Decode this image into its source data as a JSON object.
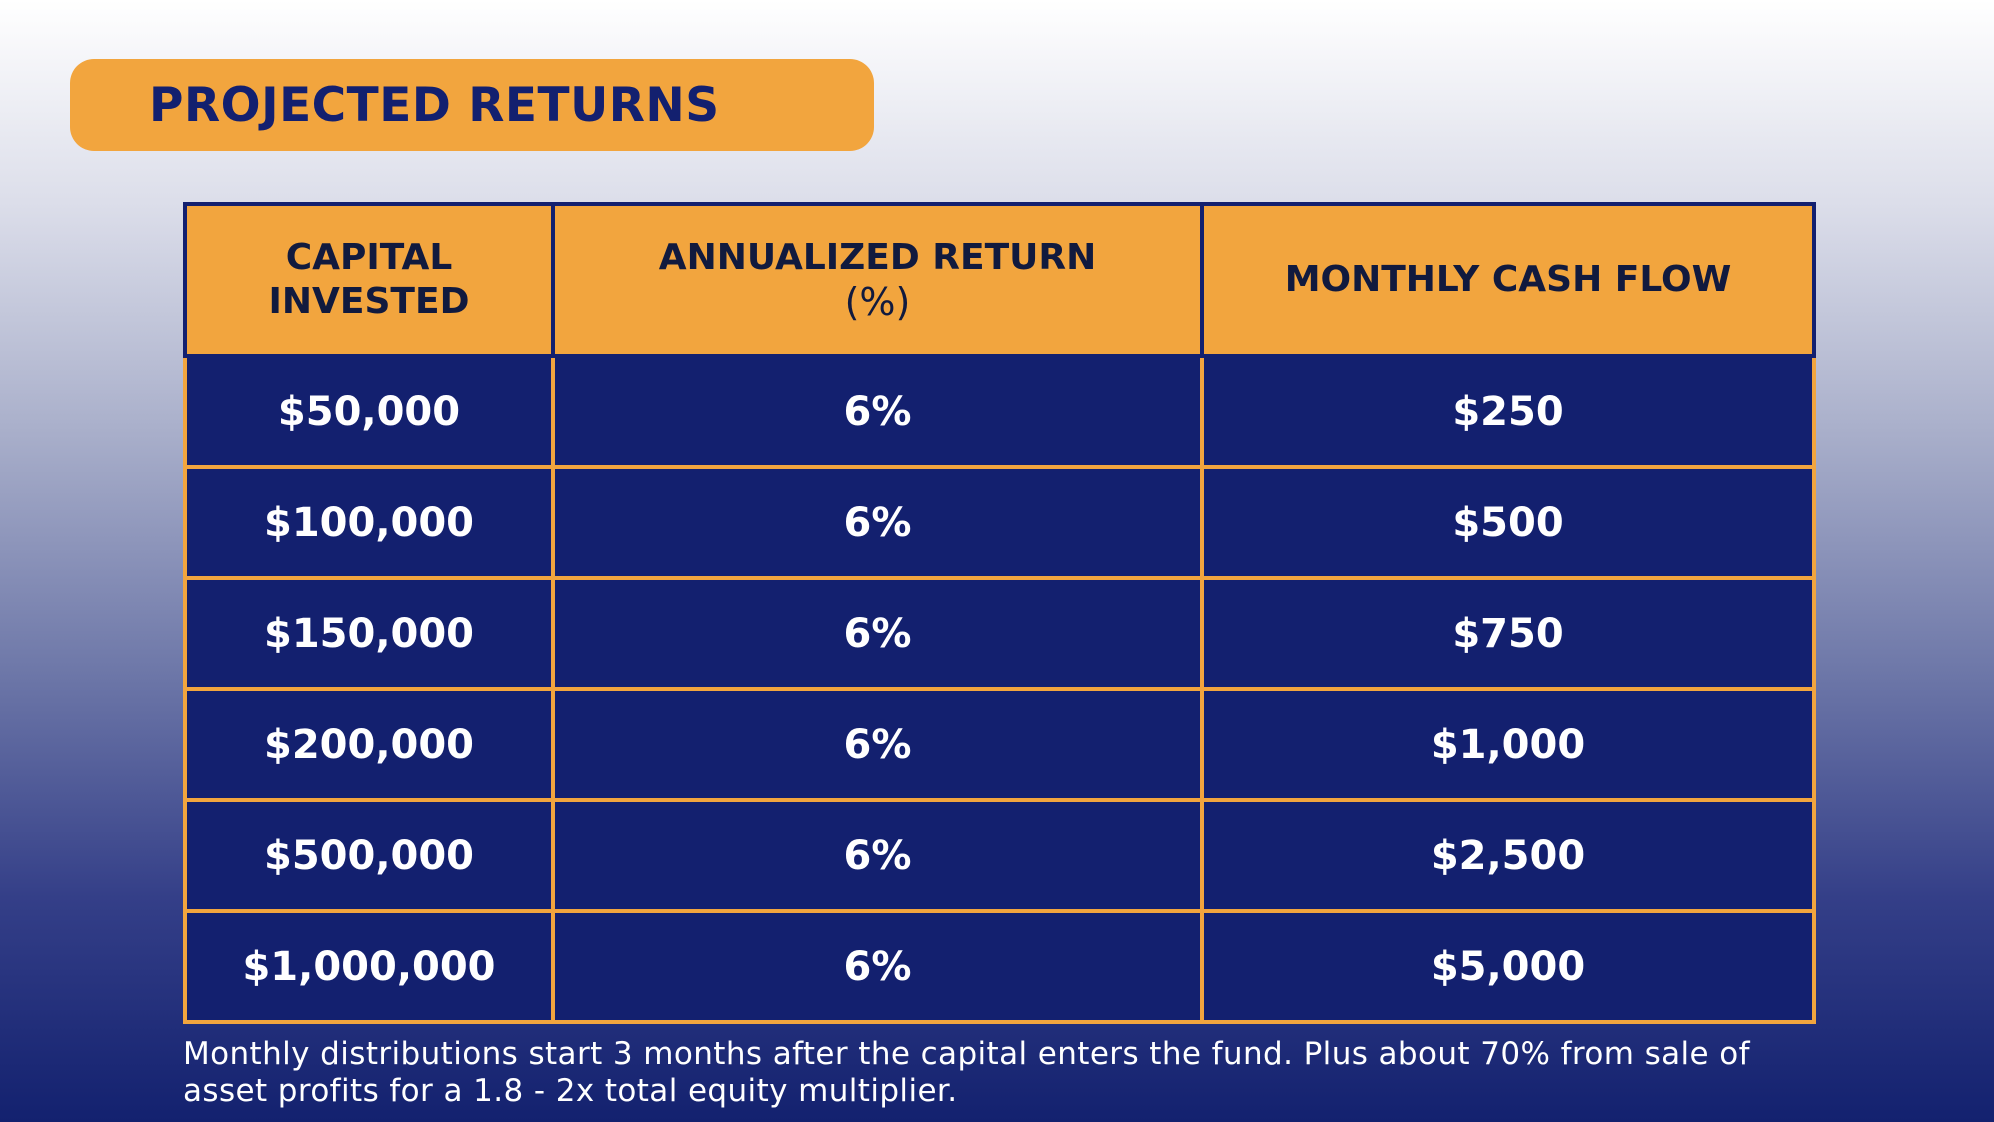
{
  "title": "PROJECTED RETURNS",
  "table": {
    "headers": {
      "capital": "CAPITAL INVESTED",
      "annualized_main": "ANNUALIZED RETURN",
      "annualized_sub": "(%)",
      "monthly": "MONTHLY CASH FLOW"
    },
    "rows": [
      {
        "capital": "$50,000",
        "annualized": "6%",
        "monthly": "$250"
      },
      {
        "capital": "$100,000",
        "annualized": "6%",
        "monthly": "$500"
      },
      {
        "capital": "$150,000",
        "annualized": "6%",
        "monthly": "$750"
      },
      {
        "capital": "$200,000",
        "annualized": "6%",
        "monthly": "$1,000"
      },
      {
        "capital": "$500,000",
        "annualized": "6%",
        "monthly": "$2,500"
      },
      {
        "capital": "$1,000,000",
        "annualized": "6%",
        "monthly": "$5,000"
      }
    ]
  },
  "footnote": "Monthly distributions start 3 months after the capital enters the fund. Plus about 70% from sale of asset profits for a 1.8 - 2x total equity multiplier.",
  "colors": {
    "accent": "#f2a53e",
    "navy": "#13206f",
    "header_text": "#111a3e"
  }
}
